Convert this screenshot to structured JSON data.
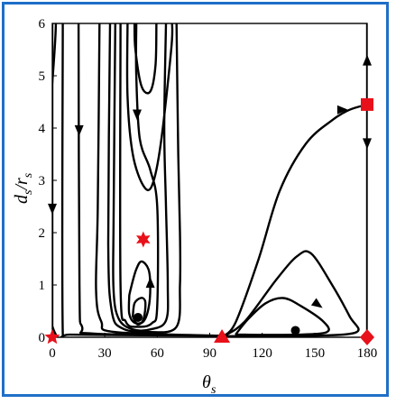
{
  "chart_data": {
    "type": "phase_portrait",
    "title": "",
    "xlabel": {
      "main": "θ",
      "sub": "s"
    },
    "ylabel": {
      "num_main": "d",
      "num_sub": "s",
      "sep": "/",
      "den_main": "r",
      "den_sub": "s"
    },
    "xlim": [
      0,
      180
    ],
    "ylim": [
      0,
      6
    ],
    "xticks": [
      0,
      30,
      60,
      90,
      120,
      150,
      180
    ],
    "yticks": [
      0,
      1,
      2,
      3,
      4,
      5,
      6
    ],
    "grid": false,
    "legend": "none",
    "markers": [
      {
        "shape": "star5",
        "x": 0,
        "y": 0,
        "color": "#e8101a"
      },
      {
        "shape": "star6",
        "x": 52,
        "y": 1.87,
        "color": "#e8101a"
      },
      {
        "shape": "triangle",
        "x": 97,
        "y": 0,
        "color": "#e8101a"
      },
      {
        "shape": "square",
        "x": 180,
        "y": 4.45,
        "color": "#e8101a"
      },
      {
        "shape": "diamond",
        "x": 180,
        "y": 0,
        "color": "#e8101a"
      },
      {
        "shape": "dot",
        "x": 49,
        "y": 0.38,
        "color": "#000000"
      },
      {
        "shape": "dot",
        "x": 139,
        "y": 0.13,
        "color": "#000000"
      }
    ],
    "trajectories": [
      {
        "points": [
          [
            0,
            6
          ],
          [
            0,
            0
          ]
        ]
      },
      {
        "points": [
          [
            180,
            6
          ],
          [
            180,
            4.45
          ]
        ]
      },
      {
        "points": [
          [
            180,
            4.45
          ],
          [
            180,
            0
          ]
        ]
      },
      {
        "points": [
          [
            2,
            6
          ],
          [
            2,
            0.05
          ],
          [
            96,
            0.03
          ]
        ]
      },
      {
        "points": [
          [
            6,
            6
          ],
          [
            6,
            0.08
          ],
          [
            10,
            0.05
          ],
          [
            96,
            0.03
          ]
        ]
      },
      {
        "points": [
          [
            15,
            6
          ],
          [
            15.5,
            1
          ],
          [
            17,
            0.2
          ],
          [
            24,
            0.07
          ],
          [
            96,
            0.03
          ]
        ]
      },
      {
        "points": [
          [
            27,
            6
          ],
          [
            26,
            2.5
          ],
          [
            25,
            0.9
          ],
          [
            28,
            0.3
          ],
          [
            36,
            0.1
          ],
          [
            96,
            0.03
          ]
        ]
      },
      {
        "points": [
          [
            33,
            6
          ],
          [
            32,
            1.8
          ],
          [
            34,
            0.5
          ],
          [
            40,
            0.17
          ],
          [
            55,
            0.1
          ],
          [
            71,
            0.2
          ],
          [
            73,
            1
          ],
          [
            73,
            2
          ],
          [
            72,
            3.5
          ],
          [
            71,
            6
          ]
        ]
      },
      {
        "points": [
          [
            36,
            6
          ],
          [
            35,
            2.2
          ],
          [
            35,
            0.9
          ],
          [
            38,
            0.35
          ],
          [
            46,
            0.15
          ],
          [
            56,
            0.15
          ],
          [
            65,
            0.32
          ],
          [
            66,
            1
          ],
          [
            65,
            2.5
          ],
          [
            64,
            4
          ],
          [
            65,
            6
          ]
        ]
      },
      {
        "points": [
          [
            39,
            6
          ],
          [
            39,
            1
          ],
          [
            42,
            0.3
          ],
          [
            49,
            0.2
          ],
          [
            57,
            0.27
          ],
          [
            60,
            0.6
          ],
          [
            60,
            2.5
          ],
          [
            56,
            3.2
          ],
          [
            50,
            3.8
          ],
          [
            48,
            5
          ],
          [
            48,
            6
          ]
        ]
      },
      {
        "points": [
          [
            43,
            6
          ],
          [
            43,
            4.6
          ],
          [
            46,
            3.5
          ],
          [
            52,
            2.9
          ],
          [
            57,
            2.9
          ],
          [
            62,
            3.7
          ],
          [
            68,
            5.5
          ],
          [
            68.5,
            6
          ]
        ]
      },
      {
        "points": [
          [
            47,
            6
          ],
          [
            47.5,
            5.5
          ],
          [
            51,
            4.8
          ],
          [
            56,
            4.7
          ],
          [
            59,
            5.2
          ],
          [
            59.5,
            6
          ]
        ]
      },
      {
        "points": [
          [
            44,
            0.8
          ],
          [
            44,
            0.45
          ],
          [
            47,
            0.28
          ],
          [
            52,
            0.3
          ],
          [
            55,
            0.55
          ],
          [
            56,
            0.95
          ],
          [
            55,
            1.3
          ],
          [
            51,
            1.45
          ],
          [
            48,
            1.3
          ],
          [
            45,
            0.95
          ],
          [
            44,
            0.8
          ]
        ]
      },
      {
        "points": [
          [
            46,
            0.4
          ],
          [
            48.5,
            0.25
          ],
          [
            51.5,
            0.3
          ],
          [
            53,
            0.5
          ],
          [
            53,
            0.7
          ],
          [
            50.5,
            0.75
          ],
          [
            47,
            0.65
          ],
          [
            46,
            0.4
          ]
        ]
      },
      {
        "points": [
          [
            98,
            0.02
          ],
          [
            105,
            0.3
          ],
          [
            118,
            1.5
          ],
          [
            130,
            2.8
          ],
          [
            145,
            3.7
          ],
          [
            160,
            4.15
          ],
          [
            170,
            4.35
          ],
          [
            180,
            4.45
          ]
        ]
      },
      {
        "points": [
          [
            98,
            0.02
          ],
          [
            110,
            0.3
          ],
          [
            128,
            1.1
          ],
          [
            140,
            1.55
          ],
          [
            148,
            1.6
          ],
          [
            160,
            1
          ],
          [
            170,
            0.4
          ],
          [
            174,
            0.1
          ],
          [
            150,
            0.03
          ],
          [
            120,
            0.03
          ],
          [
            100,
            0.02
          ]
        ]
      },
      {
        "points": [
          [
            105,
            0.06
          ],
          [
            112,
            0.35
          ],
          [
            122,
            0.65
          ],
          [
            132,
            0.75
          ],
          [
            142,
            0.6
          ],
          [
            155,
            0.3
          ],
          [
            157,
            0.1
          ],
          [
            140,
            0.05
          ],
          [
            110,
            0.05
          ],
          [
            105,
            0.06
          ]
        ]
      }
    ],
    "arrows": [
      {
        "x": 0,
        "y": 2.45,
        "dir": "down"
      },
      {
        "x": 15.3,
        "y": 3.95,
        "dir": "down"
      },
      {
        "x": 48.5,
        "y": 4.25,
        "dir": "down"
      },
      {
        "x": 56,
        "y": 1.05,
        "dir": "up"
      },
      {
        "x": 152,
        "y": 0.62,
        "dir": "downright"
      },
      {
        "x": 166,
        "y": 4.35,
        "dir": "right"
      },
      {
        "x": 180,
        "y": 5.3,
        "dir": "up"
      },
      {
        "x": 180,
        "y": 3.7,
        "dir": "down"
      }
    ]
  }
}
